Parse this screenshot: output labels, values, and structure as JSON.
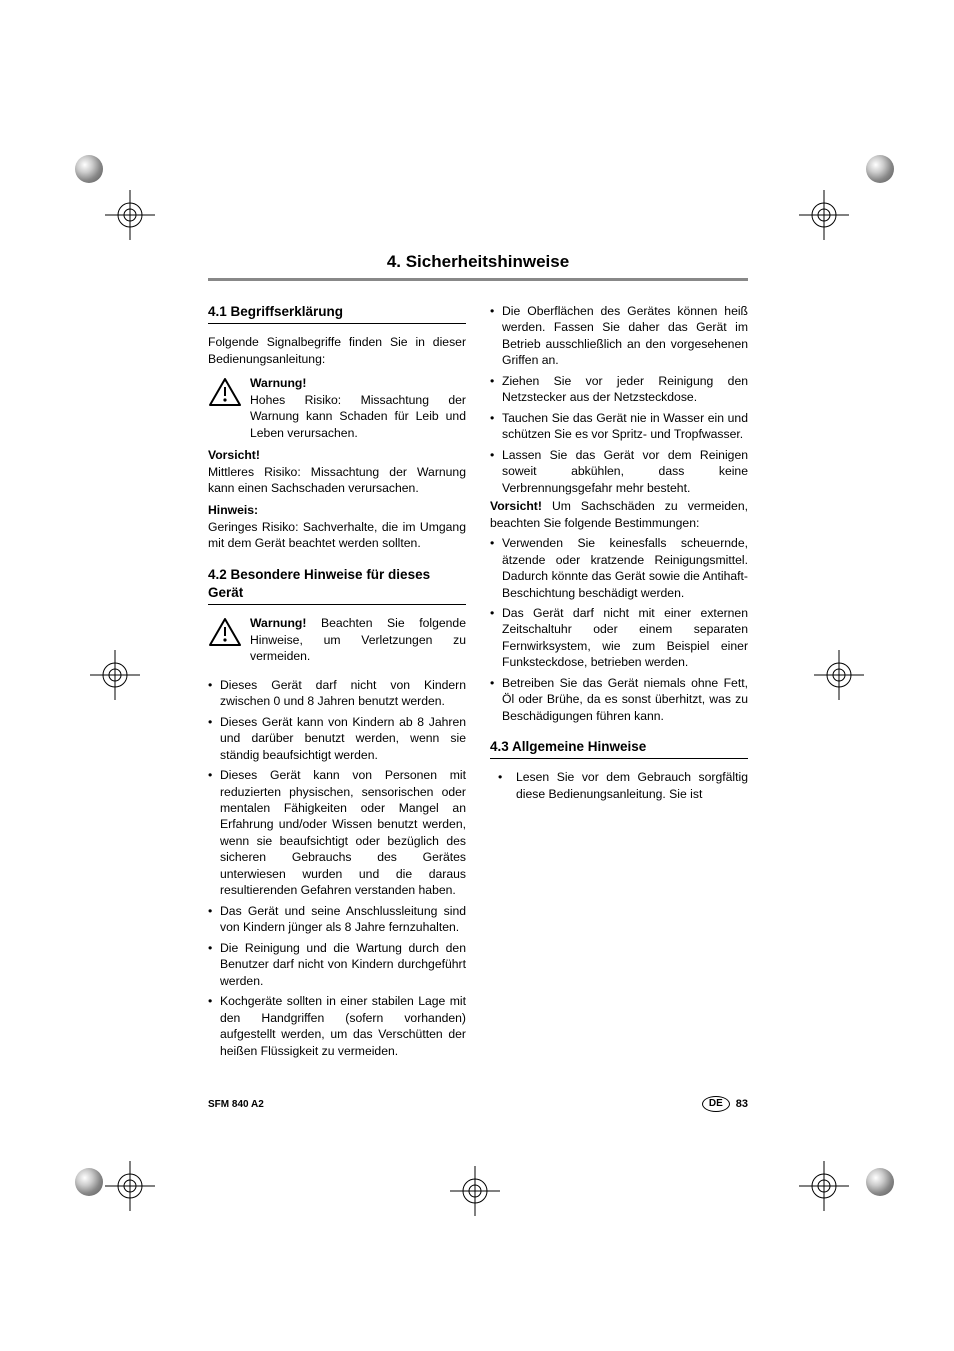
{
  "chapter_title": "4. Sicherheitshinweise",
  "s41": {
    "heading": "4.1 Begriffserklärung",
    "intro": "Folgende Signalbegriffe finden Sie in dieser Bedienungsanleitung:",
    "warnung_label": "Warnung!",
    "warnung_text": "Hohes Risiko: Missachtung der Warnung kann Schaden für Leib und Leben verursachen.",
    "vorsicht_label": "Vorsicht!",
    "vorsicht_text": "Mittleres Risiko: Missachtung der Warnung kann einen Sachschaden verursachen.",
    "hinweis_label": "Hinweis:",
    "hinweis_text": "Geringes Risiko: Sachverhalte, die im Umgang mit dem Gerät beachtet werden sollten."
  },
  "s42": {
    "heading": "4.2 Besondere Hinweise für dieses Gerät",
    "warn_lead": "Warnung!",
    "warn_text": " Beachten Sie folgende Hinweise, um Verletzungen zu vermeiden.",
    "bullets_a": [
      "Dieses Gerät darf nicht von Kindern zwischen 0 und 8 Jahren benutzt werden.",
      "Dieses Gerät kann von Kindern ab 8 Jahren und darüber benutzt werden, wenn sie ständig beaufsichtigt werden.",
      "Dieses Gerät kann von Personen mit reduzierten physischen, sensorischen oder mentalen Fähigkeiten oder Mangel an Erfahrung und/oder Wissen benutzt werden, wenn sie beaufsichtigt oder bezüglich des sicheren Gebrauchs des Gerätes unterwiesen wurden und die daraus resultierenden Gefahren verstanden haben.",
      "Das Gerät und seine Anschlussleitung sind von Kindern jünger als 8 Jahre fernzuhalten.",
      "Die Reinigung und die Wartung durch den Benutzer darf nicht von Kindern durchgeführt werden.",
      "Kochgeräte sollten in einer stabilen Lage mit den Handgriffen (sofern vorhanden) aufgestellt werden, um das Verschütten der heißen Flüssigkeit zu vermeiden.",
      "Die Oberflächen des Gerätes können heiß werden. Fassen Sie daher das Gerät im Betrieb ausschließlich an den vorgesehenen Griffen an.",
      "Ziehen Sie vor jeder Reinigung den Netzstecker aus der Netzsteckdose.",
      "Tauchen Sie das Gerät nie in Wasser ein und schützen Sie es vor Spritz- und Tropfwasser.",
      "Lassen Sie das Gerät vor dem Reinigen soweit abkühlen, dass keine Verbrennungsgefahr mehr besteht."
    ],
    "vorsicht_lead": "Vorsicht!",
    "vorsicht_text": " Um Sachschäden zu vermeiden, beachten Sie folgende Bestimmungen:",
    "bullets_b": [
      "Verwenden Sie keinesfalls scheuernde, ätzende oder kratzende Reinigungsmittel. Dadurch könnte das Gerät sowie die Antihaft-Beschichtung beschädigt werden.",
      "Das Gerät darf nicht mit einer externen Zeitschaltuhr oder einem separaten Fernwirksystem, wie zum Beispiel einer Funksteckdose, betrieben werden.",
      "Betreiben Sie das Gerät niemals ohne Fett, Öl oder Brühe, da es sonst überhitzt, was zu Beschädigungen führen kann."
    ]
  },
  "s43": {
    "heading": "4.3 Allgemeine Hinweise",
    "bullets": [
      "Lesen Sie vor dem Gebrauch sorgfältig diese Bedienungsanleitung. Sie ist"
    ]
  },
  "footer": {
    "model": "SFM 840 A2",
    "lang": "DE",
    "page": "83"
  }
}
